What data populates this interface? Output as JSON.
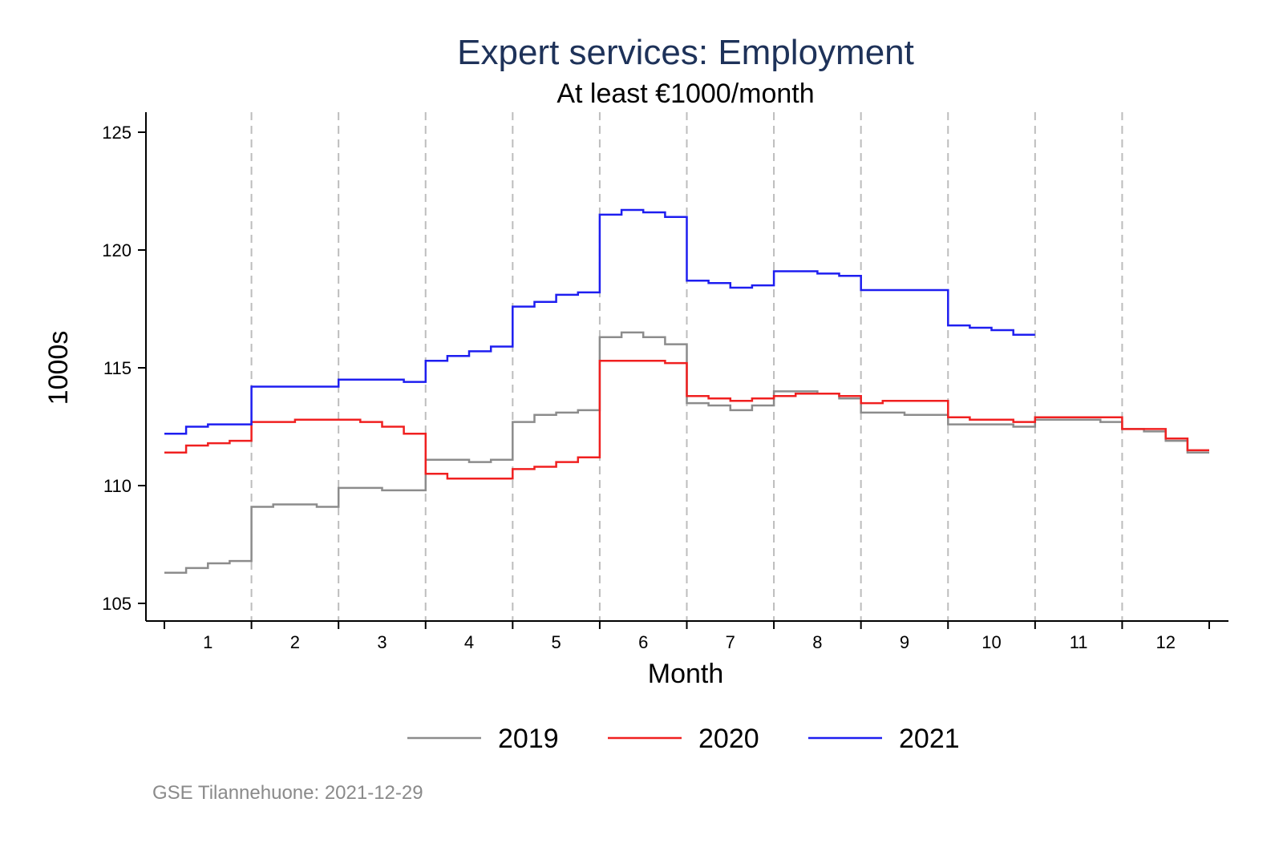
{
  "chart_data": {
    "type": "line",
    "title": "Expert services: Employment",
    "subtitle": "At least €1000/month",
    "xlabel": "Month",
    "ylabel": "1000s",
    "xlim": [
      0.5,
      12.6
    ],
    "ylim": [
      104.3,
      125.8
    ],
    "yticks": [
      105,
      110,
      115,
      120,
      125
    ],
    "xticks": [
      1,
      2,
      3,
      4,
      5,
      6,
      7,
      8,
      9,
      10,
      11,
      12
    ],
    "month_separators": [
      1.5,
      2.5,
      3.5,
      4.5,
      5.5,
      6.5,
      7.5,
      8.5,
      9.5,
      10.5,
      11.5
    ],
    "grid": false,
    "legend_position": "bottom",
    "note": "GSE Tilannehuone: 2021-12-29",
    "series": [
      {
        "name": "2019",
        "color": "#8c8c8c",
        "x_start": 0.5,
        "step": 0.25,
        "values": [
          106.3,
          106.5,
          106.7,
          106.8,
          109.1,
          109.2,
          109.2,
          109.1,
          109.9,
          109.9,
          109.8,
          109.8,
          111.1,
          111.1,
          111.0,
          111.1,
          112.7,
          113.0,
          113.1,
          113.2,
          116.3,
          116.5,
          116.3,
          116.0,
          113.5,
          113.4,
          113.2,
          113.4,
          114.0,
          114.0,
          113.9,
          113.7,
          113.1,
          113.1,
          113.0,
          113.0,
          112.6,
          112.6,
          112.6,
          112.5,
          112.8,
          112.8,
          112.8,
          112.7,
          112.4,
          112.3,
          111.9,
          111.4
        ]
      },
      {
        "name": "2020",
        "color": "#f02020",
        "x_start": 0.5,
        "step": 0.25,
        "values": [
          111.4,
          111.7,
          111.8,
          111.9,
          112.7,
          112.7,
          112.8,
          112.8,
          112.8,
          112.7,
          112.5,
          112.2,
          110.5,
          110.3,
          110.3,
          110.3,
          110.7,
          110.8,
          111.0,
          111.2,
          115.3,
          115.3,
          115.3,
          115.2,
          113.8,
          113.7,
          113.6,
          113.7,
          113.8,
          113.9,
          113.9,
          113.8,
          113.5,
          113.6,
          113.6,
          113.6,
          112.9,
          112.8,
          112.8,
          112.7,
          112.9,
          112.9,
          112.9,
          112.9,
          112.4,
          112.4,
          112.0,
          111.5
        ]
      },
      {
        "name": "2021",
        "color": "#1e1ef0",
        "x_start": 0.5,
        "step": 0.25,
        "values": [
          112.2,
          112.5,
          112.6,
          112.6,
          114.2,
          114.2,
          114.2,
          114.2,
          114.5,
          114.5,
          114.5,
          114.4,
          115.3,
          115.5,
          115.7,
          115.9,
          117.6,
          117.8,
          118.1,
          118.2,
          121.5,
          121.7,
          121.6,
          121.4,
          118.7,
          118.6,
          118.4,
          118.5,
          119.1,
          119.1,
          119.0,
          118.9,
          118.3,
          118.3,
          118.3,
          118.3,
          116.8,
          116.7,
          116.6,
          116.4
        ]
      }
    ]
  }
}
